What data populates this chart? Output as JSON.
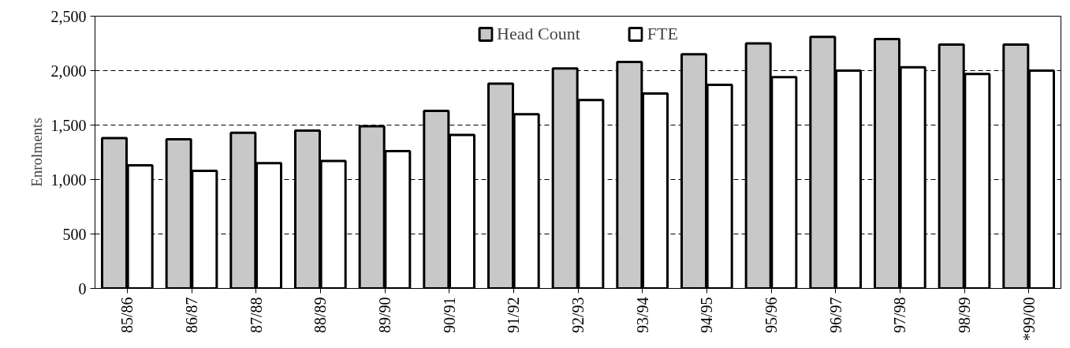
{
  "chart_data": {
    "type": "bar",
    "ylabel": "Enrolments",
    "categories": [
      "85/86",
      "86/87",
      "87/88",
      "88/89",
      "89/90",
      "90/91",
      "91/92",
      "92/93",
      "93/94",
      "94/95",
      "95/96",
      "96/97",
      "97/98",
      "98/99",
      "*99/00"
    ],
    "series": [
      {
        "name": "Head Count",
        "color": "#c8c8c8",
        "values": [
          1380,
          1370,
          1430,
          1450,
          1490,
          1630,
          1880,
          2020,
          2080,
          2150,
          2250,
          2310,
          2290,
          2240,
          2240
        ]
      },
      {
        "name": "FTE",
        "color": "#ffffff",
        "values": [
          1130,
          1080,
          1150,
          1170,
          1260,
          1410,
          1600,
          1730,
          1790,
          1870,
          1940,
          2000,
          2030,
          1970,
          2000
        ]
      }
    ],
    "ylim": [
      0,
      2500
    ],
    "yticks": [
      {
        "value": 0,
        "label": "0"
      },
      {
        "value": 500,
        "label": "500"
      },
      {
        "value": 1000,
        "label": "1,000"
      },
      {
        "value": 1500,
        "label": "1,500"
      },
      {
        "value": 2000,
        "label": "2,000"
      },
      {
        "value": 2500,
        "label": "2,500"
      }
    ],
    "grid": "y",
    "legend": "top"
  }
}
